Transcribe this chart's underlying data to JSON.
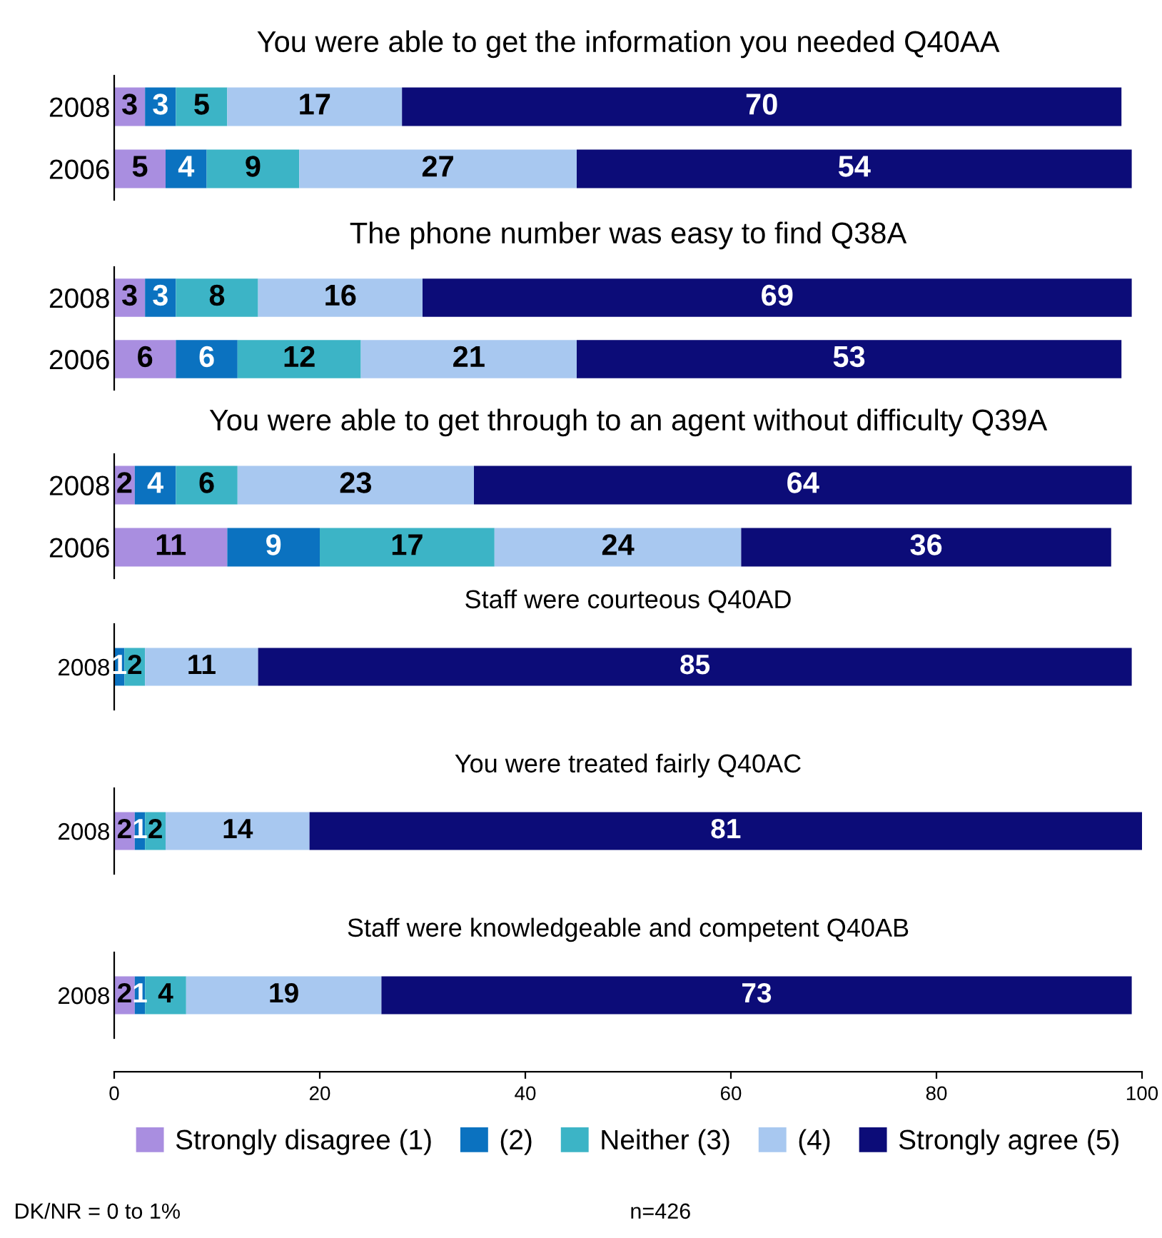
{
  "chart_data": [
    {
      "type": "bar",
      "orientation": "horizontal",
      "stacked": true,
      "title": "You were able to get the information you needed Q40AA",
      "categories": [
        "2008",
        "2006"
      ],
      "xlim": [
        0,
        100
      ],
      "tick_labels": "y",
      "data_labels": true,
      "legend": false,
      "series": [
        {
          "color": "#a98ee0",
          "values": [
            3,
            5
          ]
        },
        {
          "color": "#0b72c0",
          "values": [
            3,
            4
          ]
        },
        {
          "color": "#3cb4c6",
          "values": [
            5,
            9
          ]
        },
        {
          "color": "#a8c8f0",
          "values": [
            17,
            27
          ]
        },
        {
          "color": "#0c0c78",
          "values": [
            70,
            54
          ]
        }
      ]
    },
    {
      "type": "bar",
      "orientation": "horizontal",
      "stacked": true,
      "title": "The phone number was easy to find Q38A",
      "categories": [
        "2008",
        "2006"
      ],
      "xlim": [
        0,
        100
      ],
      "tick_labels": "y",
      "data_labels": true,
      "legend": false,
      "series": [
        {
          "color": "#a98ee0",
          "values": [
            3,
            6
          ]
        },
        {
          "color": "#0b72c0",
          "values": [
            3,
            6
          ]
        },
        {
          "color": "#3cb4c6",
          "values": [
            8,
            12
          ]
        },
        {
          "color": "#a8c8f0",
          "values": [
            16,
            21
          ]
        },
        {
          "color": "#0c0c78",
          "values": [
            69,
            53
          ]
        }
      ]
    },
    {
      "type": "bar",
      "orientation": "horizontal",
      "stacked": true,
      "title": "You were able to get through to an agent without difficulty Q39A",
      "categories": [
        "2008",
        "2006"
      ],
      "xlim": [
        0,
        100
      ],
      "tick_labels": "y",
      "data_labels": true,
      "legend": false,
      "series": [
        {
          "color": "#a98ee0",
          "values": [
            2,
            11
          ]
        },
        {
          "color": "#0b72c0",
          "values": [
            4,
            9
          ]
        },
        {
          "color": "#3cb4c6",
          "values": [
            6,
            17
          ]
        },
        {
          "color": "#a8c8f0",
          "values": [
            23,
            24
          ]
        },
        {
          "color": "#0c0c78",
          "values": [
            64,
            36
          ]
        }
      ]
    },
    {
      "type": "bar",
      "orientation": "horizontal",
      "stacked": true,
      "title": "Staff were courteous Q40AD",
      "categories": [
        "2008"
      ],
      "xlim": [
        0,
        100
      ],
      "tick_labels": "y",
      "legend": false,
      "series": [
        {
          "color": "#a98ee0",
          "values": [
            0
          ],
          "value_labels": [
            null
          ]
        },
        {
          "color": "#0b72c0",
          "values": [
            1
          ],
          "value_labels": [
            "1"
          ]
        },
        {
          "color": "#3cb4c6",
          "values": [
            2
          ],
          "value_labels": [
            "2"
          ]
        },
        {
          "color": "#a8c8f0",
          "values": [
            11
          ],
          "value_labels": [
            "11"
          ]
        },
        {
          "color": "#0c0c78",
          "values": [
            85
          ],
          "value_labels": [
            "85"
          ]
        }
      ]
    },
    {
      "type": "bar",
      "orientation": "horizontal",
      "stacked": true,
      "title": "You were treated fairly Q40AC",
      "categories": [
        "2008"
      ],
      "xlim": [
        0,
        100
      ],
      "tick_labels": "y",
      "data_labels": true,
      "legend": false,
      "series": [
        {
          "color": "#a98ee0",
          "values": [
            2
          ]
        },
        {
          "color": "#0b72c0",
          "values": [
            1
          ]
        },
        {
          "color": "#3cb4c6",
          "values": [
            2
          ]
        },
        {
          "color": "#a8c8f0",
          "values": [
            14
          ]
        },
        {
          "color": "#0c0c78",
          "values": [
            81
          ]
        }
      ]
    },
    {
      "type": "bar",
      "orientation": "horizontal",
      "stacked": true,
      "title": "Staff were knowledgeable and competent Q40AB",
      "categories": [
        "2008"
      ],
      "xlim": [
        0,
        100
      ],
      "xticks": [
        0,
        20,
        40,
        60,
        80,
        100
      ],
      "data_labels": true,
      "legend": "bottom",
      "annotations": [
        "DK/NR = 0 to 1%",
        "n=426"
      ],
      "series": [
        {
          "name": "Strongly disagree (1)",
          "color": "#a98ee0",
          "values": [
            2
          ]
        },
        {
          "name": "(2)",
          "color": "#0b72c0",
          "values": [
            1
          ]
        },
        {
          "name": "Neither (3)",
          "color": "#3cb4c6",
          "values": [
            4
          ]
        },
        {
          "name": "(4)",
          "color": "#a8c8f0",
          "values": [
            19
          ]
        },
        {
          "name": "Strongly agree (5)",
          "color": "#0c0c78",
          "values": [
            73
          ]
        }
      ]
    }
  ]
}
